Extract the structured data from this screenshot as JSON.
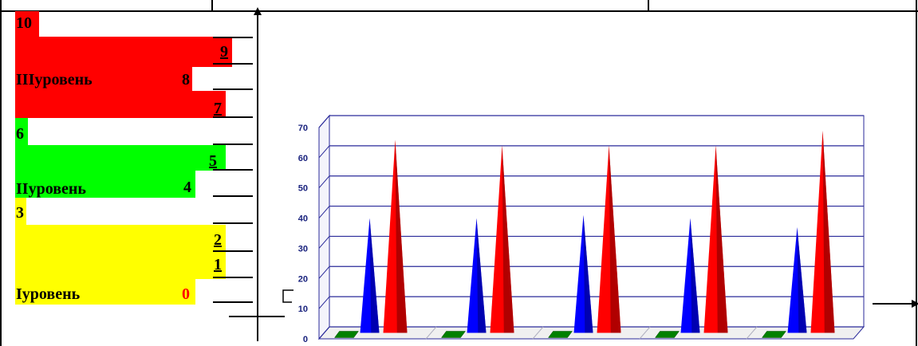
{
  "scale": {
    "levels": [
      {
        "name": "Iуровень",
        "color": "#ffff00",
        "numbers": [
          "0",
          "1",
          "2",
          "3"
        ]
      },
      {
        "name": "IIуровень",
        "color": "#00ff00",
        "numbers": [
          "4",
          "5",
          "6"
        ]
      },
      {
        "name": "IIIуровень",
        "color": "#ff0000",
        "numbers": [
          "7",
          "8",
          "9",
          "10"
        ]
      }
    ],
    "labels": {
      "n10": "10",
      "n9": "9",
      "n8": "8",
      "n7": "7",
      "n6": "6",
      "n5": "5",
      "n4": "4",
      "n3": "3",
      "n2": "2",
      "n1": "1",
      "n0": "0",
      "level3": "IIIуровень",
      "level2": "IIуровень",
      "level1": "Iуровень"
    }
  },
  "chart_data": {
    "type": "bar",
    "style": "3d-cone",
    "categories": [
      "",
      "",
      "",
      "",
      ""
    ],
    "series": [
      {
        "color": "#008000",
        "values": [
          0,
          0,
          0,
          0,
          0
        ]
      },
      {
        "color": "#0000ff",
        "values": [
          38,
          38,
          39,
          38,
          35
        ]
      },
      {
        "color": "#ff0000",
        "values": [
          64,
          62,
          62,
          62,
          67
        ]
      }
    ],
    "yticks": [
      "0",
      "10",
      "20",
      "30",
      "40",
      "50",
      "60",
      "70"
    ],
    "ylim": [
      0,
      70
    ],
    "grid": true,
    "colors": {
      "axis_text": "#1a237e",
      "grid": "#2a2a9a",
      "wall": "#ffffff"
    }
  }
}
